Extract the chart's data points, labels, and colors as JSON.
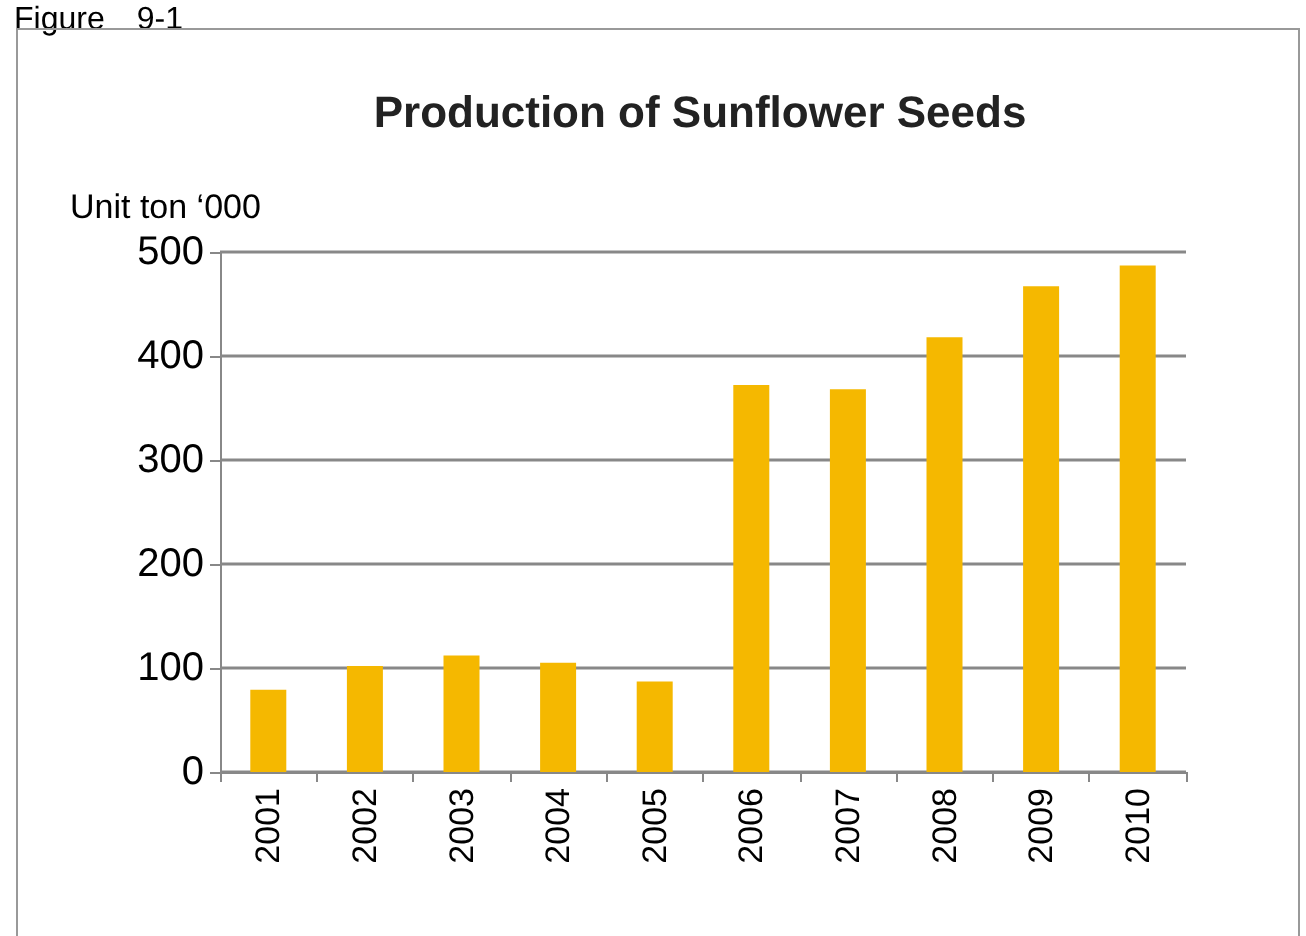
{
  "chart_data": {
    "type": "bar",
    "title": "Production of Sunflower Seeds",
    "ylabel": "Unit ton ‘000",
    "annotations": [
      "Figure　9-1"
    ],
    "categories": [
      "2001",
      "2002",
      "2003",
      "2004",
      "2005",
      "2006",
      "2007",
      "2008",
      "2009",
      "2010"
    ],
    "values": [
      79,
      102,
      112,
      105,
      87,
      372,
      368,
      418,
      467,
      487
    ],
    "color": "#f5b800",
    "ylim": [
      0,
      500
    ],
    "yticks": [
      0,
      100,
      200,
      300,
      400,
      500
    ],
    "grid": "y"
  }
}
